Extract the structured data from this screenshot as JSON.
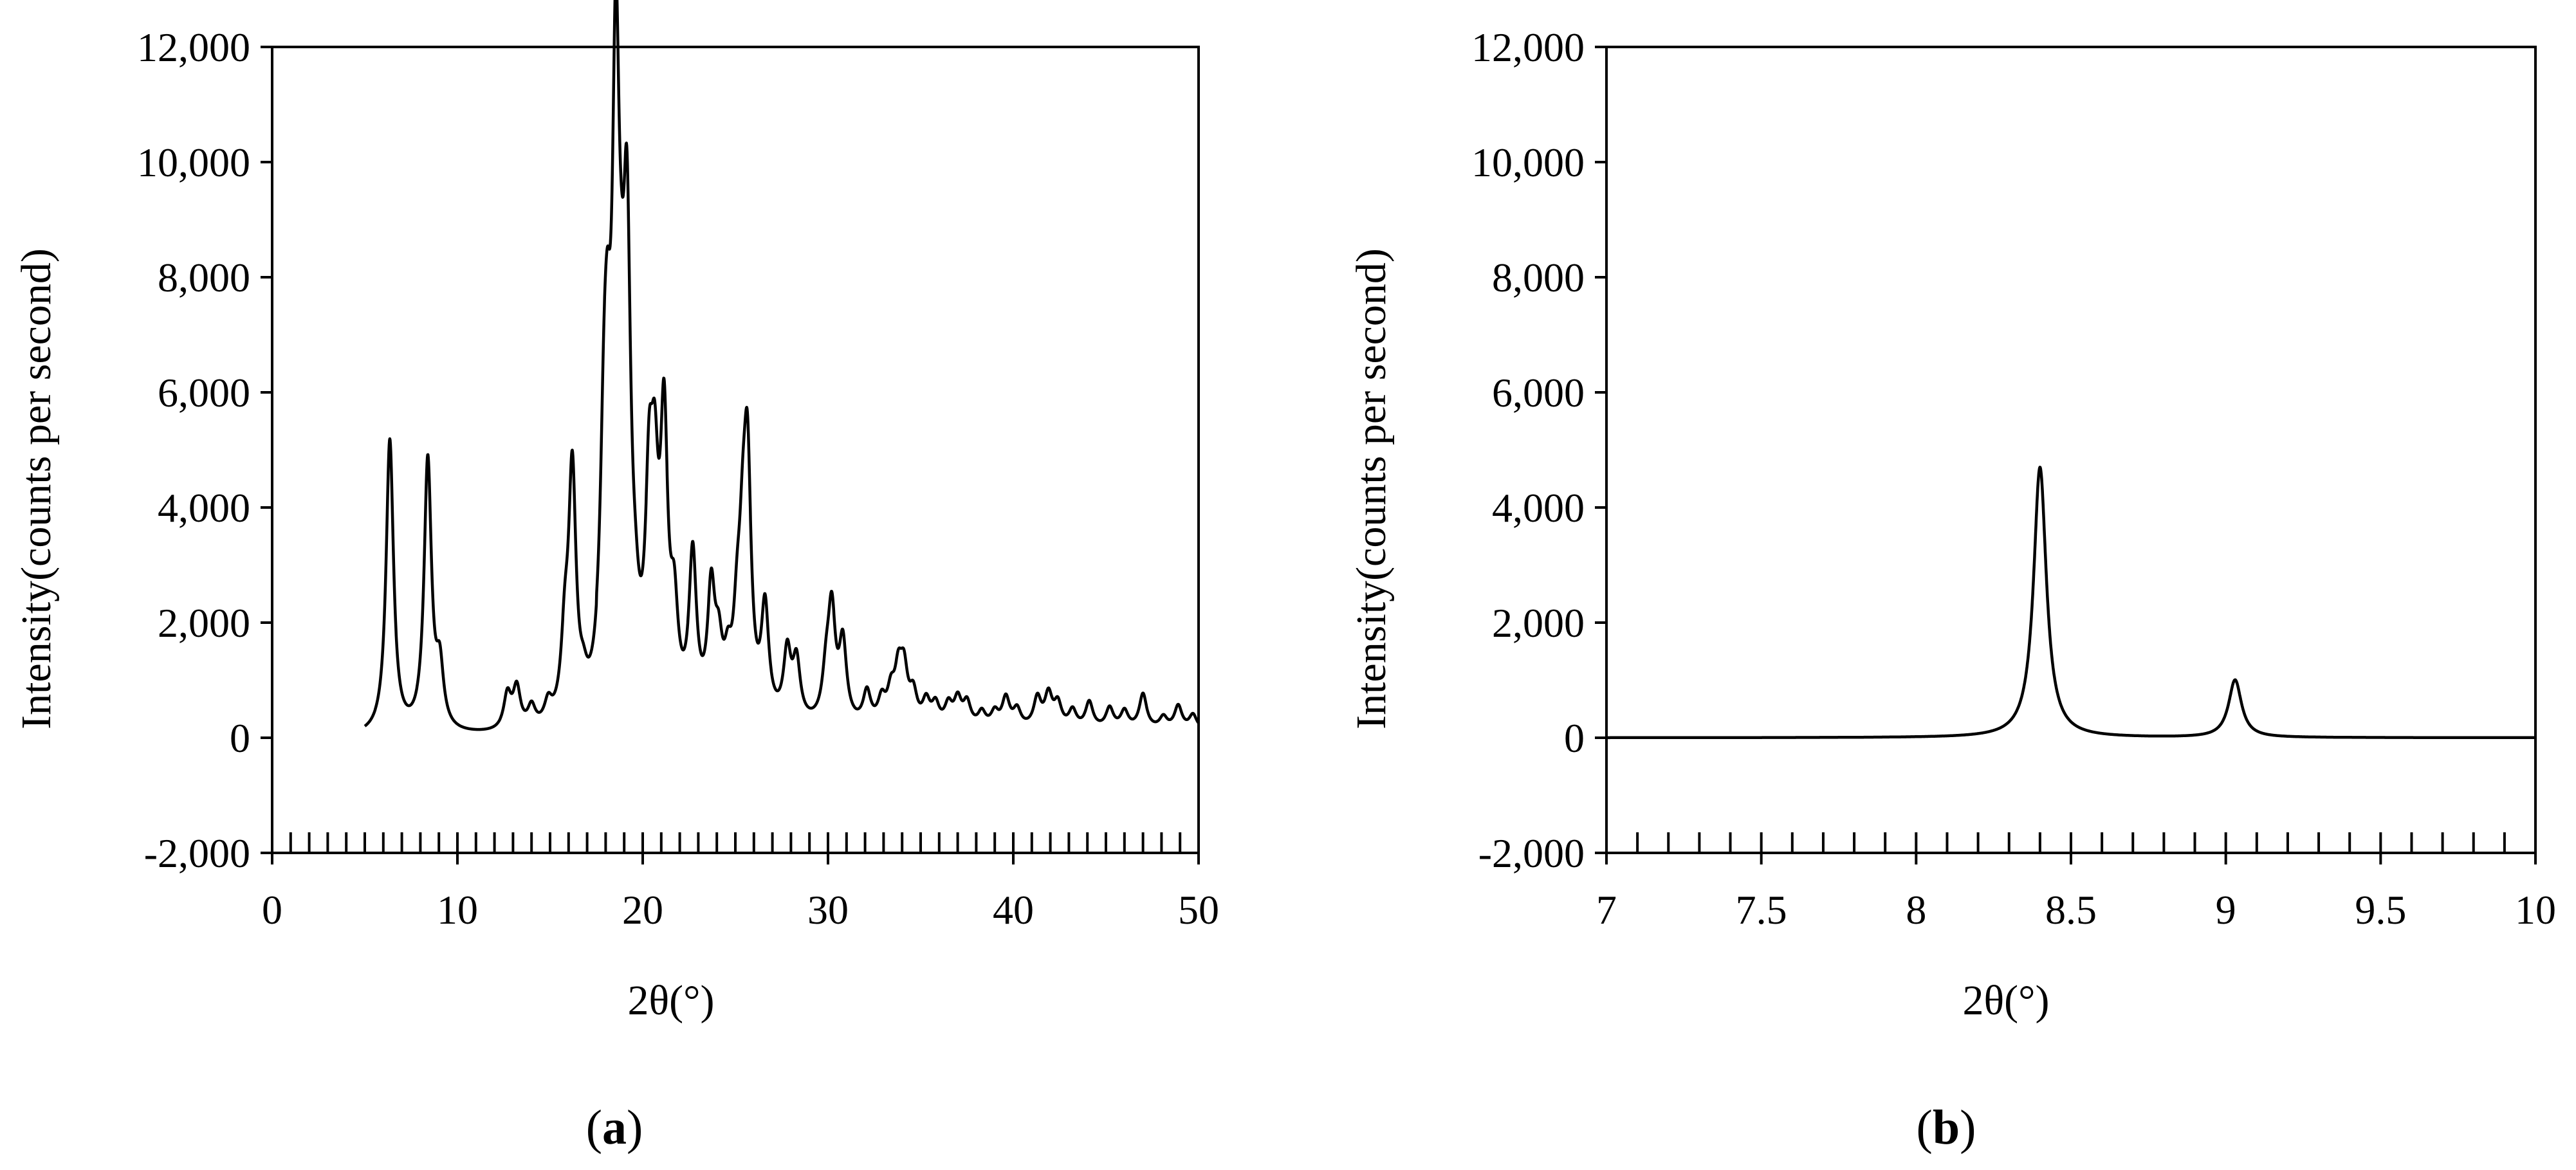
{
  "chart_data": [
    {
      "type": "line",
      "panel_label": "a",
      "xlabel": "2θ(°)",
      "ylabel": "Intensity(counts per second)",
      "xlim": [
        0,
        50
      ],
      "ylim": [
        -2000,
        12000
      ],
      "x_tick_labels": [
        "0",
        "10",
        "20",
        "30",
        "40",
        "50"
      ],
      "x_tick_values": [
        0,
        10,
        20,
        30,
        40,
        50
      ],
      "y_tick_labels": [
        "-2,000",
        "0",
        "2,000",
        "4,000",
        "6,000",
        "8,000",
        "10,000",
        "12,000"
      ],
      "y_tick_values": [
        -2000,
        0,
        2000,
        4000,
        6000,
        8000,
        10000,
        12000
      ],
      "grid": false,
      "series": [
        {
          "color": "#000000",
          "x_range": [
            5,
            50
          ],
          "peaks": [
            [
              6.35,
              5100
            ],
            [
              8.4,
              4700
            ],
            [
              9.05,
              1000
            ],
            [
              12.7,
              600
            ],
            [
              13.2,
              700
            ],
            [
              14.0,
              350
            ],
            [
              14.9,
              350
            ],
            [
              15.8,
              1250
            ],
            [
              16.2,
              4250
            ],
            [
              16.8,
              350
            ],
            [
              17.9,
              3100
            ],
            [
              18.1,
              3600
            ],
            [
              18.55,
              9950
            ],
            [
              18.85,
              1900
            ],
            [
              19.15,
              7200
            ],
            [
              19.6,
              650
            ],
            [
              20.35,
              3200
            ],
            [
              20.65,
              3000
            ],
            [
              21.15,
              4650
            ],
            [
              21.7,
              1500
            ],
            [
              22.7,
              2700
            ],
            [
              23.7,
              2050
            ],
            [
              24.1,
              950
            ],
            [
              24.6,
              700
            ],
            [
              25.1,
              1250
            ],
            [
              25.4,
              2000
            ],
            [
              25.65,
              4050
            ],
            [
              26.6,
              1850
            ],
            [
              27.8,
              1150
            ],
            [
              28.3,
              1000
            ],
            [
              29.9,
              700
            ],
            [
              30.2,
              1850
            ],
            [
              30.8,
              1350
            ],
            [
              32.1,
              550
            ],
            [
              32.9,
              400
            ],
            [
              33.4,
              500
            ],
            [
              33.8,
              800
            ],
            [
              34.1,
              850
            ],
            [
              34.6,
              500
            ],
            [
              35.3,
              400
            ],
            [
              35.8,
              350
            ],
            [
              36.5,
              350
            ],
            [
              37.0,
              450
            ],
            [
              37.5,
              400
            ],
            [
              38.3,
              250
            ],
            [
              39.0,
              250
            ],
            [
              39.6,
              500
            ],
            [
              40.2,
              300
            ],
            [
              41.3,
              500
            ],
            [
              41.9,
              550
            ],
            [
              42.4,
              400
            ],
            [
              43.2,
              300
            ],
            [
              44.1,
              450
            ],
            [
              45.2,
              350
            ],
            [
              46.0,
              300
            ],
            [
              47.0,
              600
            ],
            [
              48.1,
              200
            ],
            [
              48.9,
              400
            ],
            [
              49.7,
              250
            ]
          ]
        }
      ]
    },
    {
      "type": "line",
      "panel_label": "b",
      "xlabel": "2θ(°)",
      "ylabel": "Intensity(counts per second)",
      "xlim": [
        7,
        10
      ],
      "ylim": [
        -2000,
        12000
      ],
      "x_tick_labels": [
        "7",
        "7.5",
        "8",
        "8.5",
        "9",
        "9.5",
        "10"
      ],
      "x_tick_values": [
        7,
        7.5,
        8,
        8.5,
        9,
        9.5,
        10
      ],
      "y_tick_labels": [
        "-2,000",
        "0",
        "2,000",
        "4,000",
        "6,000",
        "8,000",
        "10,000",
        "12,000"
      ],
      "y_tick_values": [
        -2000,
        0,
        2000,
        4000,
        6000,
        8000,
        10000,
        12000
      ],
      "grid": false,
      "series": [
        {
          "color": "#000000",
          "x_range": [
            7,
            10
          ],
          "peaks": [
            [
              8.4,
              4700
            ],
            [
              9.03,
              1000
            ]
          ]
        }
      ]
    }
  ]
}
